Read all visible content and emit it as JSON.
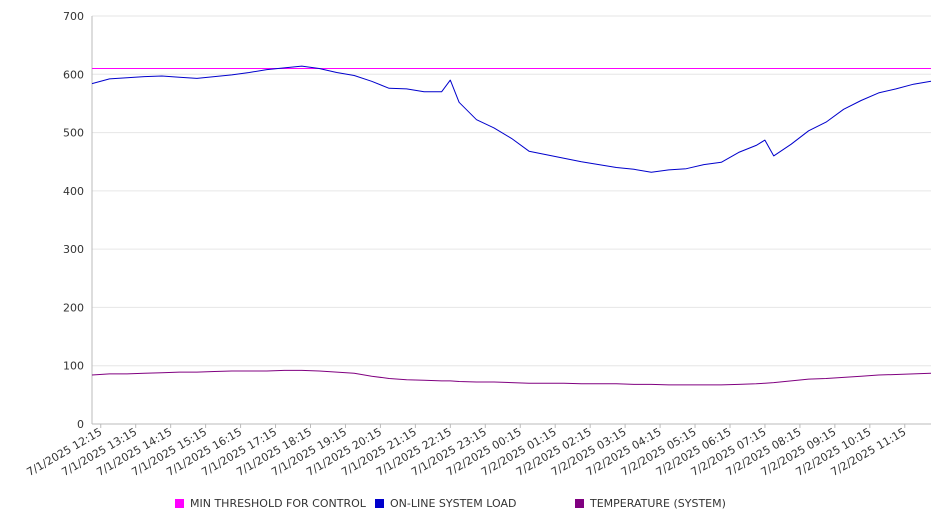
{
  "chart_data": {
    "type": "line",
    "title": "",
    "xlabel": "",
    "ylabel": "",
    "ylim": [
      0,
      700
    ],
    "yticks": [
      0,
      100,
      200,
      300,
      400,
      500,
      600,
      700
    ],
    "grid": true,
    "legend_position": "bottom",
    "xtick_labels": [
      "7/1/2025 12:15",
      "7/1/2025 13:15",
      "7/1/2025 14:15",
      "7/1/2025 15:15",
      "7/1/2025 16:15",
      "7/1/2025 17:15",
      "7/1/2025 18:15",
      "7/1/2025 19:15",
      "7/1/2025 20:15",
      "7/1/2025 21:15",
      "7/1/2025 22:15",
      "7/1/2025 23:15",
      "7/2/2025 00:15",
      "7/2/2025 01:15",
      "7/2/2025 02:15",
      "7/2/2025 03:15",
      "7/2/2025 04:15",
      "7/2/2025 05:15",
      "7/2/2025 06:15",
      "7/2/2025 07:15",
      "7/2/2025 08:15",
      "7/2/2025 09:15",
      "7/2/2025 10:15",
      "7/2/2025 11:15"
    ],
    "x": [
      "7/1/2025 12:00",
      "7/1/2025 12:30",
      "7/1/2025 13:00",
      "7/1/2025 13:30",
      "7/1/2025 14:00",
      "7/1/2025 14:30",
      "7/1/2025 15:00",
      "7/1/2025 15:30",
      "7/1/2025 16:00",
      "7/1/2025 16:30",
      "7/1/2025 17:00",
      "7/1/2025 17:30",
      "7/1/2025 18:00",
      "7/1/2025 18:30",
      "7/1/2025 19:00",
      "7/1/2025 19:30",
      "7/1/2025 20:00",
      "7/1/2025 20:30",
      "7/1/2025 21:00",
      "7/1/2025 21:30",
      "7/1/2025 22:00",
      "7/1/2025 22:15",
      "7/1/2025 22:30",
      "7/1/2025 23:00",
      "7/1/2025 23:30",
      "7/2/2025 00:00",
      "7/2/2025 00:30",
      "7/2/2025 01:00",
      "7/2/2025 01:30",
      "7/2/2025 02:00",
      "7/2/2025 02:30",
      "7/2/2025 03:00",
      "7/2/2025 03:30",
      "7/2/2025 04:00",
      "7/2/2025 04:30",
      "7/2/2025 05:00",
      "7/2/2025 05:30",
      "7/2/2025 06:00",
      "7/2/2025 06:30",
      "7/2/2025 07:00",
      "7/2/2025 07:15",
      "7/2/2025 07:30",
      "7/2/2025 08:00",
      "7/2/2025 08:30",
      "7/2/2025 09:00",
      "7/2/2025 09:30",
      "7/2/2025 10:00",
      "7/2/2025 10:30",
      "7/2/2025 11:00",
      "7/2/2025 11:30",
      "7/2/2025 12:00"
    ],
    "series": [
      {
        "name": "MIN THRESHOLD FOR CONTROL",
        "color": "#ff00ff",
        "values": [
          610,
          610,
          610,
          610,
          610,
          610,
          610,
          610,
          610,
          610,
          610,
          610,
          610,
          610,
          610,
          610,
          610,
          610,
          610,
          610,
          610,
          610,
          610,
          610,
          610,
          610,
          610,
          610,
          610,
          610,
          610,
          610,
          610,
          610,
          610,
          610,
          610,
          610,
          610,
          610,
          610,
          610,
          610,
          610,
          610,
          610,
          610,
          610,
          610,
          610,
          610
        ]
      },
      {
        "name": "ON-LINE SYSTEM LOAD",
        "color": "#0000cc",
        "values": [
          584,
          592,
          594,
          596,
          597,
          595,
          593,
          596,
          599,
          603,
          608,
          611,
          614,
          610,
          603,
          598,
          588,
          576,
          575,
          570,
          570,
          590,
          552,
          522,
          508,
          490,
          468,
          462,
          456,
          450,
          445,
          440,
          437,
          432,
          436,
          438,
          445,
          449,
          466,
          478,
          487,
          460,
          480,
          503,
          518,
          540,
          555,
          568,
          575,
          583,
          588
        ]
      },
      {
        "name": "TEMPERATURE (SYSTEM)",
        "color": "#800080",
        "values": [
          84,
          86,
          86,
          87,
          88,
          89,
          89,
          90,
          91,
          91,
          91,
          92,
          92,
          91,
          89,
          87,
          82,
          78,
          76,
          75,
          74,
          74,
          73,
          72,
          72,
          71,
          70,
          70,
          70,
          69,
          69,
          69,
          68,
          68,
          67,
          67,
          67,
          67,
          68,
          69,
          70,
          71,
          74,
          77,
          78,
          80,
          82,
          84,
          85,
          86,
          87
        ]
      }
    ]
  }
}
